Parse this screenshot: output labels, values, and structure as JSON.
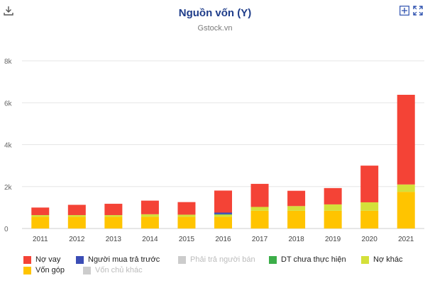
{
  "header": {
    "title": "Nguồn vốn (Y)",
    "subtitle": "Gstock.vn",
    "download_icon": "download-icon",
    "expand_icon": "plus-square-icon",
    "fullscreen_icon": "fullscreen-icon"
  },
  "chart_data": {
    "type": "bar",
    "stacked": true,
    "title": "Nguồn vốn (Y)",
    "subtitle": "Gstock.vn",
    "categories": [
      "2011",
      "2012",
      "2013",
      "2014",
      "2015",
      "2016",
      "2017",
      "2018",
      "2019",
      "2020",
      "2021"
    ],
    "ylim": [
      0,
      8000
    ],
    "yticks": [
      0,
      2000,
      4000,
      6000,
      8000
    ],
    "ytick_labels": [
      "0",
      "2k",
      "4k",
      "6k",
      "8k"
    ],
    "grid": true,
    "legend_position": "bottom-left",
    "series": [
      {
        "name": "Vốn góp",
        "color": "#ffc400",
        "values": [
          560,
          560,
          560,
          560,
          560,
          560,
          850,
          850,
          850,
          850,
          1750
        ],
        "visible": true
      },
      {
        "name": "Nợ khác",
        "color": "#d4e03a",
        "values": [
          80,
          80,
          80,
          120,
          100,
          100,
          180,
          220,
          300,
          400,
          350
        ],
        "visible": true
      },
      {
        "name": "DT chưa thực hiện",
        "color": "#3cae49",
        "values": [
          0,
          0,
          0,
          0,
          0,
          20,
          0,
          0,
          0,
          0,
          0
        ],
        "visible": true
      },
      {
        "name": "Phải trả người bán",
        "color": "#cccccc",
        "values": [
          0,
          0,
          0,
          0,
          0,
          0,
          0,
          0,
          0,
          0,
          0
        ],
        "visible": false
      },
      {
        "name": "Người mua trả trước",
        "color": "#3b4db5",
        "values": [
          0,
          0,
          0,
          0,
          0,
          80,
          0,
          0,
          0,
          0,
          0
        ],
        "visible": true
      },
      {
        "name": "Nợ vay",
        "color": "#f44336",
        "values": [
          360,
          490,
          540,
          650,
          600,
          1050,
          1100,
          730,
          780,
          1750,
          4280
        ],
        "visible": true
      },
      {
        "name": "Vốn chủ khác",
        "color": "#cccccc",
        "values": [
          0,
          0,
          0,
          0,
          0,
          0,
          0,
          0,
          0,
          0,
          0
        ],
        "visible": false
      }
    ]
  },
  "legend": [
    {
      "label": "Nợ vay",
      "color": "#f44336",
      "active": true
    },
    {
      "label": "Người mua trả trước",
      "color": "#3b4db5",
      "active": true
    },
    {
      "label": "Phải trả người bán",
      "color": "#cccccc",
      "active": false
    },
    {
      "label": "DT chưa thực hiện",
      "color": "#3cae49",
      "active": true
    },
    {
      "label": "Nợ khác",
      "color": "#d4e03a",
      "active": true
    },
    {
      "label": "Vốn góp",
      "color": "#ffc400",
      "active": true
    },
    {
      "label": "Vốn chủ khác",
      "color": "#cccccc",
      "active": false
    }
  ]
}
